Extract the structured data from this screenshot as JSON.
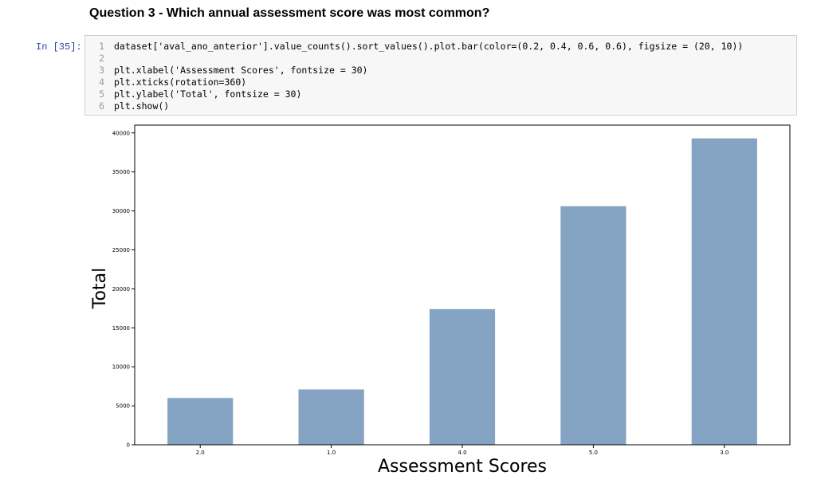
{
  "heading": "Question 3 - Which annual assessment score was most common?",
  "cell": {
    "prompt": "In [35]:",
    "lines": [
      {
        "num": "1",
        "text": "dataset['aval_ano_anterior'].value_counts().sort_values().plot.bar(color=(0.2, 0.4, 0.6, 0.6), figsize = (20, 10))"
      },
      {
        "num": "2",
        "text": ""
      },
      {
        "num": "3",
        "text": "plt.xlabel('Assessment Scores', fontsize = 30)"
      },
      {
        "num": "4",
        "text": "plt.xticks(rotation=360)"
      },
      {
        "num": "5",
        "text": "plt.ylabel('Total', fontsize = 30)"
      },
      {
        "num": "6",
        "text": "plt.show()"
      }
    ]
  },
  "chart_data": {
    "type": "bar",
    "categories": [
      "2.0",
      "1.0",
      "4.0",
      "5.0",
      "3.0"
    ],
    "values": [
      6000,
      7100,
      17400,
      30600,
      39300
    ],
    "xlabel": "Assessment Scores",
    "ylabel": "Total",
    "ylim": [
      0,
      41000
    ],
    "yticks": [
      0,
      5000,
      10000,
      15000,
      20000,
      25000,
      30000,
      35000,
      40000
    ],
    "bar_color": "#85a3c2",
    "grid": false
  }
}
